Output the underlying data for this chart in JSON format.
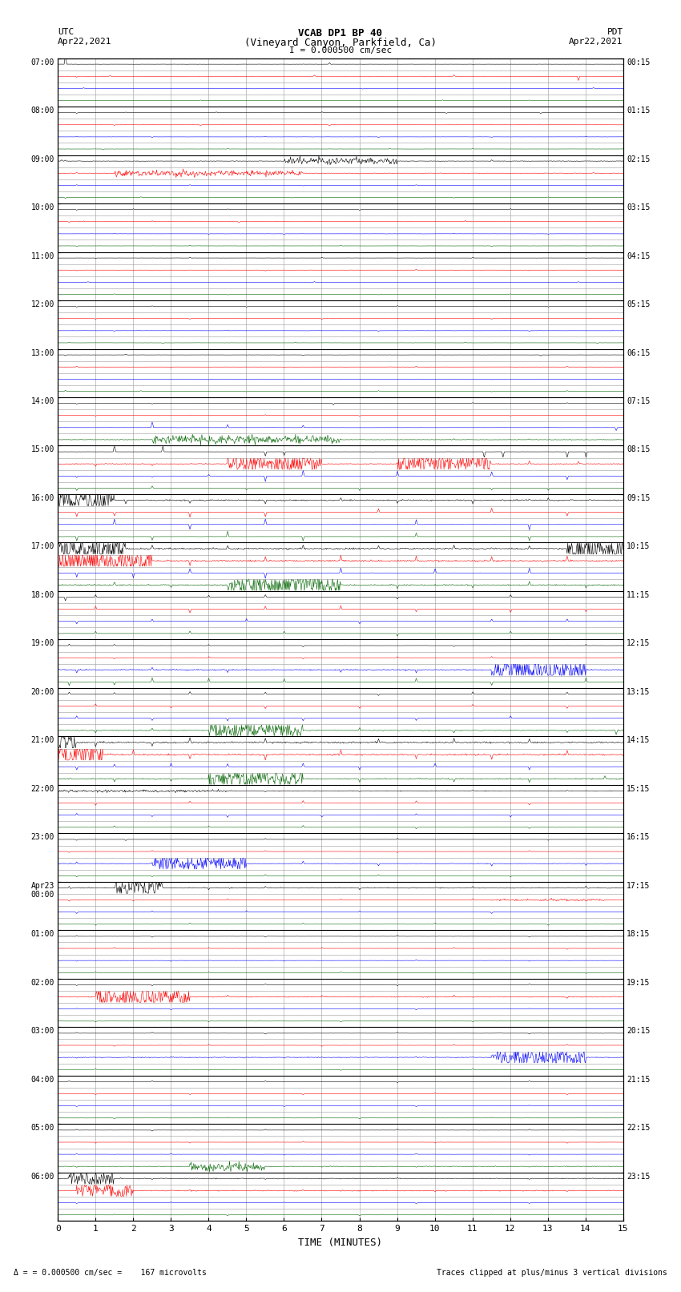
{
  "title_line1": "VCAB DP1 BP 40",
  "title_line2": "(Vineyard Canyon, Parkfield, Ca)",
  "scale_label": "I = 0.000500 cm/sec",
  "utc_label": "UTC",
  "utc_date": "Apr22,2021",
  "pdt_label": "PDT",
  "pdt_date": "Apr22,2021",
  "xlabel": "TIME (MINUTES)",
  "footer_left": "= 0.000500 cm/sec =    167 microvolts",
  "footer_right": "Traces clipped at plus/minus 3 vertical divisions",
  "row_labels_left": [
    "07:00",
    "",
    "",
    "",
    "08:00",
    "",
    "",
    "",
    "09:00",
    "",
    "",
    "",
    "10:00",
    "",
    "",
    "",
    "11:00",
    "",
    "",
    "",
    "12:00",
    "",
    "",
    "",
    "13:00",
    "",
    "",
    "",
    "14:00",
    "",
    "",
    "",
    "15:00",
    "",
    "",
    "",
    "16:00",
    "",
    "",
    "",
    "17:00",
    "",
    "",
    "",
    "18:00",
    "",
    "",
    "",
    "19:00",
    "",
    "",
    "",
    "20:00",
    "",
    "",
    "",
    "21:00",
    "",
    "",
    "",
    "22:00",
    "",
    "",
    "",
    "23:00",
    "",
    "",
    "",
    "Apr23\n00:00",
    "",
    "",
    "",
    "01:00",
    "",
    "",
    "",
    "02:00",
    "",
    "",
    "",
    "03:00",
    "",
    "",
    "",
    "04:00",
    "",
    "",
    "",
    "05:00",
    "",
    "",
    "",
    "06:00",
    "",
    "",
    ""
  ],
  "row_labels_right": [
    "00:15",
    "",
    "",
    "",
    "01:15",
    "",
    "",
    "",
    "02:15",
    "",
    "",
    "",
    "03:15",
    "",
    "",
    "",
    "04:15",
    "",
    "",
    "",
    "05:15",
    "",
    "",
    "",
    "06:15",
    "",
    "",
    "",
    "07:15",
    "",
    "",
    "",
    "08:15",
    "",
    "",
    "",
    "09:15",
    "",
    "",
    "",
    "10:15",
    "",
    "",
    "",
    "11:15",
    "",
    "",
    "",
    "12:15",
    "",
    "",
    "",
    "13:15",
    "",
    "",
    "",
    "14:15",
    "",
    "",
    "",
    "15:15",
    "",
    "",
    "",
    "16:15",
    "",
    "",
    "",
    "17:15",
    "",
    "",
    "",
    "18:15",
    "",
    "",
    "",
    "19:15",
    "",
    "",
    "",
    "20:15",
    "",
    "",
    "",
    "21:15",
    "",
    "",
    "",
    "22:15",
    "",
    "",
    "",
    "23:15",
    "",
    "",
    ""
  ],
  "n_hours": 24,
  "subrows_per_hour": 4,
  "x_min": 0,
  "x_max": 15,
  "x_ticks": [
    0,
    1,
    2,
    3,
    4,
    5,
    6,
    7,
    8,
    9,
    10,
    11,
    12,
    13,
    14,
    15
  ],
  "bg_color": "#ffffff",
  "grid_color": "#999999",
  "hour_line_color": "#000000",
  "subrow_line_color": "#999999",
  "seed": 12345
}
